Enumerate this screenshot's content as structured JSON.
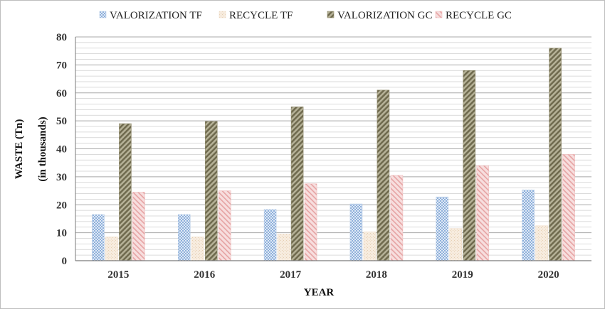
{
  "chart_data": {
    "type": "bar",
    "categories": [
      "2015",
      "2016",
      "2017",
      "2018",
      "2019",
      "2020"
    ],
    "series": [
      {
        "name": "VALORIZATION TF",
        "values": [
          16.5,
          16.5,
          18.3,
          20.3,
          22.8,
          25.3
        ],
        "color": "#b7cde8"
      },
      {
        "name": "RECYCLE TF",
        "values": [
          8.5,
          8.5,
          9.5,
          10.3,
          11.5,
          12.5
        ],
        "color": "#f0dfcc"
      },
      {
        "name": "VALORIZATION GC",
        "values": [
          49,
          49.8,
          55,
          61,
          68,
          76
        ],
        "color": "#8f8a6c"
      },
      {
        "name": "RECYCLE GC",
        "values": [
          24.5,
          25,
          27.5,
          30.5,
          34,
          38
        ],
        "color": "#eebcbc"
      }
    ],
    "xlabel": "YEAR",
    "ylabel": "WASTE (Tn)",
    "ylabel2": "(in thousands)",
    "ylim": [
      0,
      80
    ],
    "yticks": [
      "0",
      "10",
      "20",
      "30",
      "40",
      "50",
      "60",
      "70",
      "80"
    ],
    "grid": true,
    "legend": "top"
  }
}
